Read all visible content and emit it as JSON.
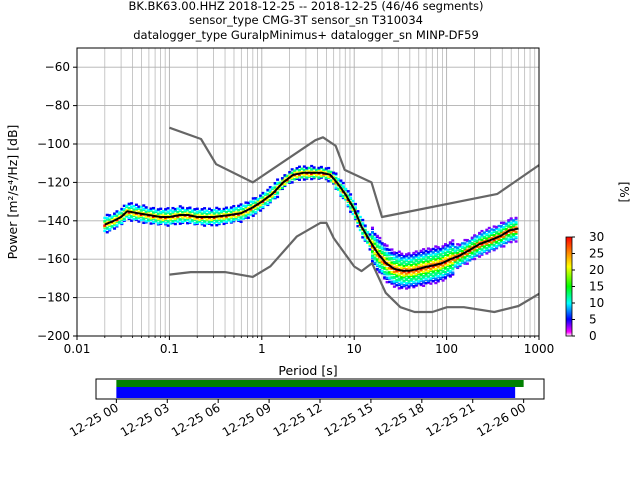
{
  "title_lines": [
    "BK.BK63.00.HHZ   2018-12-25 -- 2018-12-25  (46/46 segments)",
    "sensor_type CMG-3T sensor_sn T310034",
    "datalogger_type GuralpMinimus+ datalogger_sn MINP-DF59"
  ],
  "colorbar": {
    "label": "[%]",
    "ticks": [
      "0",
      "5",
      "10",
      "15",
      "20",
      "25",
      "30"
    ],
    "range": [
      0,
      30
    ]
  },
  "timeline": {
    "ticks": [
      "12-25 00",
      "12-25 03",
      "12-25 06",
      "12-25 09",
      "12-25 12",
      "12-25 15",
      "12-25 18",
      "12-25 21",
      "12-26 00"
    ],
    "range_hours": [
      -1.2,
      25.2
    ],
    "bars": [
      {
        "name": "data",
        "color": "#008000",
        "start_h": 0.0,
        "end_h": 24.0
      },
      {
        "name": "psd",
        "color": "#0000ff",
        "start_h": 0.0,
        "end_h": 23.5
      }
    ]
  },
  "chart_data": {
    "type": "line",
    "xlabel": "Period [s]",
    "ylabel": "Power [m²/s⁴/Hz] [dB]",
    "xscale": "log",
    "xlim": [
      0.01,
      1000
    ],
    "ylim": [
      -200,
      -50
    ],
    "xticks": [
      0.01,
      0.1,
      1,
      10,
      100,
      1000
    ],
    "xtick_labels": [
      "0.01",
      "0.1",
      "1",
      "10",
      "100",
      "1000"
    ],
    "yticks": [
      -200,
      -180,
      -160,
      -140,
      -120,
      -100,
      -80,
      -60
    ],
    "ytick_labels": [
      "−200",
      "−180",
      "−160",
      "−140",
      "−120",
      "−100",
      "−80",
      "−60"
    ],
    "grid": true,
    "series": [
      {
        "role": "noise-model-high",
        "color": "#666666",
        "x": [
          0.1,
          0.22,
          0.32,
          0.8,
          3.8,
          4.6,
          6.3,
          7.9,
          15.4,
          20,
          354.8,
          1000
        ],
        "y": [
          -91.5,
          -97.4,
          -110.5,
          -120,
          -98,
          -96.5,
          -101,
          -113.5,
          -120,
          -138,
          -126,
          -111
        ]
      },
      {
        "role": "noise-model-low",
        "color": "#666666",
        "x": [
          0.1,
          0.17,
          0.4,
          0.8,
          1.24,
          2.4,
          4.3,
          5.0,
          6.0,
          10,
          12,
          15.6,
          21.9,
          31.6,
          45,
          70,
          101,
          154,
          328,
          600,
          1000
        ],
        "y": [
          -168,
          -166.7,
          -166.7,
          -169.2,
          -163.7,
          -148.1,
          -141.1,
          -141.1,
          -149,
          -163.8,
          -166.2,
          -162.1,
          -177.5,
          -185,
          -187.5,
          -187.5,
          -185,
          -185,
          -187.5,
          -184.4,
          -178
        ]
      },
      {
        "role": "mode",
        "color": "#000000",
        "x": [
          0.02,
          0.025,
          0.03,
          0.035,
          0.045,
          0.06,
          0.08,
          0.1,
          0.13,
          0.16,
          0.2,
          0.3,
          0.45,
          0.6,
          0.8,
          1.0,
          1.3,
          1.7,
          2.2,
          2.8,
          3.5,
          4.5,
          5.5,
          6.5,
          8,
          10,
          12,
          15,
          18,
          22,
          27,
          33,
          40,
          50,
          60,
          75,
          90,
          110,
          140,
          180,
          230,
          300,
          380,
          480,
          600
        ],
        "y": [
          -142,
          -140,
          -138,
          -135,
          -136,
          -137,
          -138,
          -138,
          -137,
          -137,
          -138,
          -138,
          -137,
          -136,
          -133,
          -130,
          -126,
          -120,
          -116,
          -115,
          -115,
          -115,
          -116,
          -120,
          -126,
          -134,
          -143,
          -151,
          -157,
          -162,
          -165,
          -166,
          -166,
          -165,
          -164,
          -163,
          -162,
          -160,
          -158,
          -155,
          -152,
          -150,
          -148,
          -145,
          -144
        ]
      }
    ]
  }
}
